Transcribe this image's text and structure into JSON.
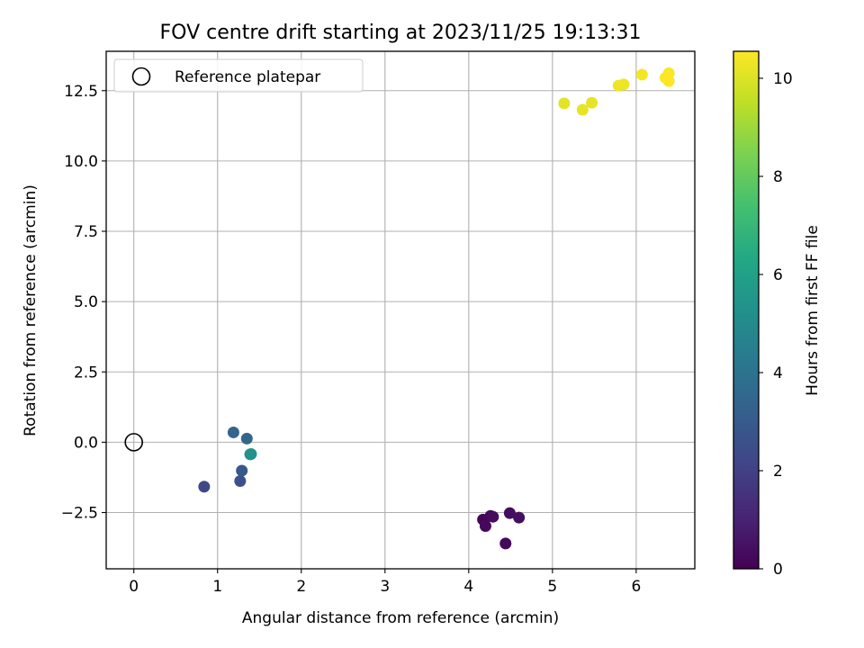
{
  "chart_data": {
    "type": "scatter",
    "title": "FOV centre drift starting at 2023/11/25 19:13:31",
    "xlabel": "Angular distance from reference (arcmin)",
    "ylabel": "Rotation from reference (arcmin)",
    "xlim": [
      -0.33,
      6.7
    ],
    "ylim": [
      -4.5,
      13.9
    ],
    "xticks": [
      0,
      1,
      2,
      3,
      4,
      5,
      6
    ],
    "xtick_labels": [
      "0",
      "1",
      "2",
      "3",
      "4",
      "5",
      "6"
    ],
    "yticks": [
      -2.5,
      0.0,
      2.5,
      5.0,
      7.5,
      10.0,
      12.5
    ],
    "ytick_labels": [
      "−2.5",
      "0.0",
      "2.5",
      "5.0",
      "7.5",
      "10.0",
      "12.5"
    ],
    "grid": true,
    "legend": {
      "entries": [
        "Reference platepar"
      ],
      "location": "upper-left"
    },
    "colorbar": {
      "label": "Hours from first FF file",
      "colormap": "viridis",
      "range": [
        0,
        10.55
      ],
      "ticks": [
        0,
        2,
        4,
        6,
        8,
        10
      ],
      "tick_labels": [
        "0",
        "2",
        "4",
        "6",
        "8",
        "10"
      ]
    },
    "reference_point": {
      "name": "Reference platepar",
      "x": 0,
      "y": 0
    },
    "series": [
      {
        "points": [
          {
            "x": 4.17,
            "y": -2.75,
            "c": 0.15
          },
          {
            "x": 4.2,
            "y": -2.98,
            "c": 0.2
          },
          {
            "x": 4.26,
            "y": -2.62,
            "c": 0.25
          },
          {
            "x": 4.29,
            "y": -2.65,
            "c": 0.3
          },
          {
            "x": 4.44,
            "y": -3.6,
            "c": 0.2
          },
          {
            "x": 4.49,
            "y": -2.52,
            "c": 0.35
          },
          {
            "x": 4.6,
            "y": -2.68,
            "c": 0.4
          },
          {
            "x": 0.84,
            "y": -1.58,
            "c": 2.3
          },
          {
            "x": 1.27,
            "y": -1.38,
            "c": 2.6
          },
          {
            "x": 1.29,
            "y": -1.01,
            "c": 2.9
          },
          {
            "x": 1.19,
            "y": 0.35,
            "c": 3.4
          },
          {
            "x": 1.35,
            "y": 0.13,
            "c": 3.5
          },
          {
            "x": 1.39,
            "y": -0.43,
            "c": 5.0
          },
          {
            "x": 1.4,
            "y": -0.42,
            "c": 5.3
          },
          {
            "x": 5.14,
            "y": 12.05,
            "c": 10.1
          },
          {
            "x": 5.36,
            "y": 11.82,
            "c": 10.15
          },
          {
            "x": 5.47,
            "y": 12.07,
            "c": 10.2
          },
          {
            "x": 5.79,
            "y": 12.68,
            "c": 10.3
          },
          {
            "x": 5.85,
            "y": 12.72,
            "c": 10.3
          },
          {
            "x": 6.07,
            "y": 13.07,
            "c": 10.4
          },
          {
            "x": 6.35,
            "y": 12.96,
            "c": 10.5
          },
          {
            "x": 6.39,
            "y": 13.12,
            "c": 10.5
          },
          {
            "x": 6.39,
            "y": 12.84,
            "c": 10.55
          }
        ]
      }
    ]
  }
}
